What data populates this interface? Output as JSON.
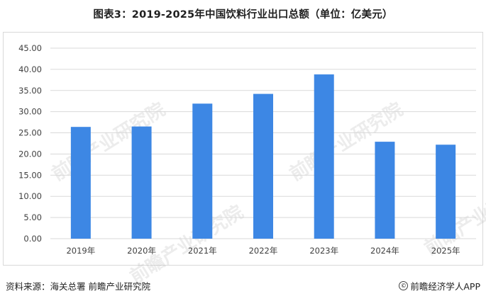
{
  "title": "图表3：2019-2025年中国饮料行业出口总额（单位：亿美元）",
  "watermark": "前瞻产业研究院",
  "footer": {
    "source": "资料来源：海关总署  前瞻产业研究院",
    "brand": "前瞻经济学人APP",
    "brand_icon": "copyright-icon"
  },
  "chart_data": {
    "type": "bar",
    "title": "图表3：2019-2025年中国饮料行业出口总额（单位：亿美元）",
    "categories": [
      "2019年",
      "2020年",
      "2021年",
      "2022年",
      "2023年",
      "2024年",
      "2025年"
    ],
    "values": [
      26.4,
      26.5,
      31.9,
      34.2,
      38.8,
      22.9,
      22.2
    ],
    "y_ticks": [
      "0.00",
      "5.00",
      "10.00",
      "15.00",
      "20.00",
      "25.00",
      "30.00",
      "35.00",
      "40.00",
      "45.00"
    ],
    "ylim": [
      0,
      45
    ],
    "grid": true,
    "bar_color": "#3d87e4",
    "grid_color": "#d9d9d9",
    "xlabel": "",
    "ylabel": ""
  }
}
